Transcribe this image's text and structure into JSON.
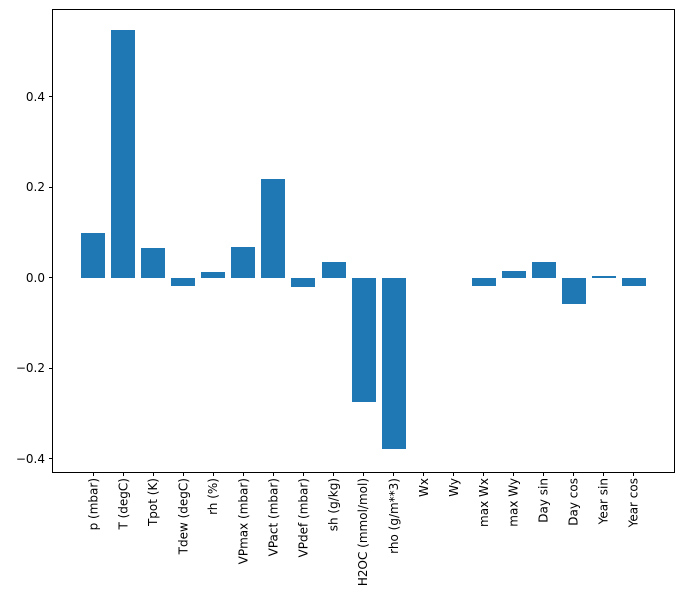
{
  "figure": {
    "background": "#ffffff",
    "axes_edge_color": "#000000",
    "tick_color": "#000000"
  },
  "chart_data": {
    "type": "bar",
    "title": "",
    "xlabel": "",
    "ylabel": "",
    "grid": false,
    "legend": null,
    "bar_color": "#1f77b4",
    "bar_width": 0.8,
    "categories": [
      "p (mbar)",
      "T (degC)",
      "Tpot (K)",
      "Tdew (degC)",
      "rh (%)",
      "VPmax (mbar)",
      "VPact (mbar)",
      "VPdef (mbar)",
      "sh (g/kg)",
      "H2OC (mmol/mol)",
      "rho (g/m**3)",
      "Wx",
      "Wy",
      "max Wx",
      "max Wy",
      "Day sin",
      "Day cos",
      "Year sin",
      "Year cos"
    ],
    "values": [
      0.099,
      0.548,
      0.066,
      -0.018,
      0.013,
      0.068,
      0.219,
      -0.02,
      0.035,
      -0.274,
      -0.378,
      0.0,
      0.0,
      -0.019,
      0.016,
      0.035,
      -0.058,
      0.004,
      -0.018
    ],
    "xlim": [
      -1.34,
      19.34
    ],
    "ylim": [
      -0.429,
      0.592
    ],
    "yticks": [
      {
        "value": -0.4,
        "label": "−0.4"
      },
      {
        "value": -0.2,
        "label": "−0.2"
      },
      {
        "value": 0.0,
        "label": "0.0"
      },
      {
        "value": 0.2,
        "label": "0.2"
      },
      {
        "value": 0.4,
        "label": "0.4"
      }
    ],
    "x_tick_rotation": 90
  }
}
